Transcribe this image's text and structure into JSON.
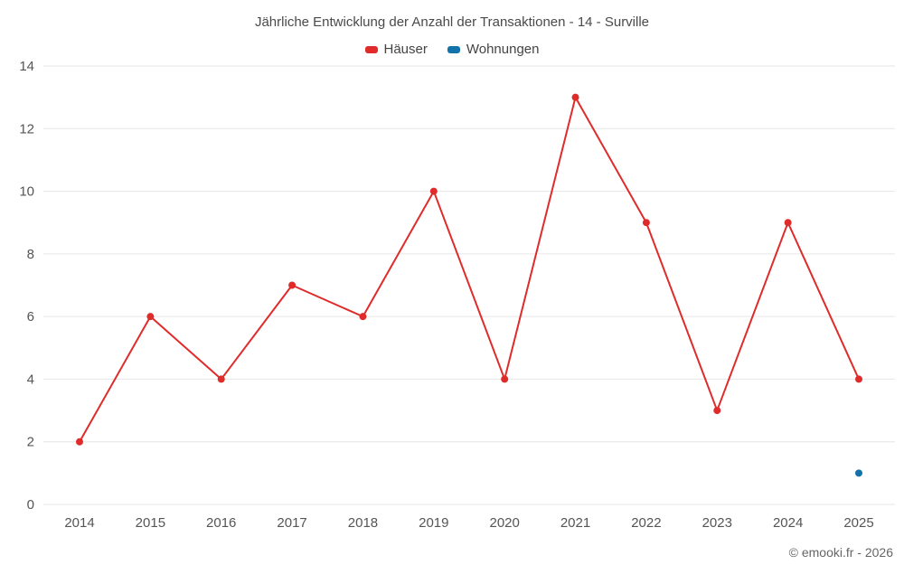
{
  "page": {
    "footer": "© emooki.fr - 2026"
  },
  "colors": {
    "haeuser": "#e02b2b",
    "wohnungen": "#1273aa",
    "grid": "#e6e6e6",
    "tick_text": "#555555",
    "title_text": "#4a4a4a"
  },
  "chart_data": {
    "type": "line",
    "title": "Jährliche Entwicklung der Anzahl der Transaktionen - 14 - Surville",
    "categories": [
      "2014",
      "2015",
      "2016",
      "2017",
      "2018",
      "2019",
      "2020",
      "2021",
      "2022",
      "2023",
      "2024",
      "2025"
    ],
    "series": [
      {
        "name": "Häuser",
        "color": "#e02b2b",
        "values": [
          2,
          6,
          4,
          7,
          6,
          10,
          4,
          13,
          9,
          3,
          9,
          4
        ]
      },
      {
        "name": "Wohnungen",
        "color": "#1273aa",
        "values": [
          null,
          null,
          null,
          null,
          null,
          null,
          null,
          null,
          null,
          null,
          null,
          1
        ]
      }
    ],
    "xlabel": "",
    "ylabel": "",
    "ylim": [
      0,
      14
    ],
    "yticks": [
      0,
      2,
      4,
      6,
      8,
      10,
      12,
      14
    ],
    "grid": true,
    "legend_position": "top"
  }
}
